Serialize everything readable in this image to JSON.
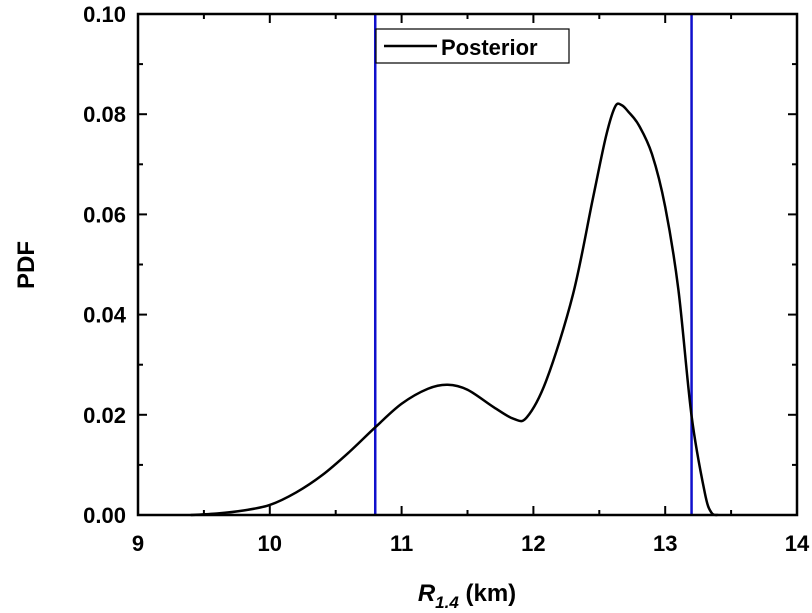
{
  "chart_data": {
    "type": "line",
    "xlabel": {
      "main": "R",
      "sub": "1.4",
      "unit": " (km)"
    },
    "ylabel": "PDF",
    "xlim": [
      9,
      14
    ],
    "ylim": [
      0,
      0.1
    ],
    "xticks": [
      9,
      10,
      11,
      12,
      13,
      14
    ],
    "xtick_labels": [
      "9",
      "10",
      "11",
      "12",
      "13",
      "14"
    ],
    "yticks": [
      0,
      0.02,
      0.04,
      0.06,
      0.08,
      0.1
    ],
    "ytick_labels": [
      "0.00",
      "0.02",
      "0.04",
      "0.06",
      "0.08",
      "0.10"
    ],
    "grid": false,
    "legend_position": "top-center",
    "series": [
      {
        "name": "Posterior",
        "color": "#000000",
        "x": [
          9.4,
          9.6,
          9.8,
          10.0,
          10.2,
          10.4,
          10.6,
          10.8,
          11.0,
          11.2,
          11.35,
          11.5,
          11.7,
          11.85,
          11.95,
          12.1,
          12.3,
          12.45,
          12.55,
          12.62,
          12.67,
          12.72,
          12.8,
          12.9,
          13.0,
          13.1,
          13.2,
          13.3,
          13.35,
          13.4
        ],
        "y": [
          0.0,
          0.0003,
          0.0009,
          0.002,
          0.0045,
          0.008,
          0.0125,
          0.0175,
          0.0222,
          0.0252,
          0.026,
          0.025,
          0.0215,
          0.0192,
          0.0195,
          0.027,
          0.044,
          0.063,
          0.0755,
          0.0815,
          0.0818,
          0.0805,
          0.0778,
          0.072,
          0.0615,
          0.045,
          0.0198,
          0.0045,
          0.0005,
          0.0
        ]
      }
    ],
    "vlines": [
      {
        "x": 10.8,
        "color": "#1010cc"
      },
      {
        "x": 13.2,
        "color": "#1010cc"
      }
    ]
  }
}
